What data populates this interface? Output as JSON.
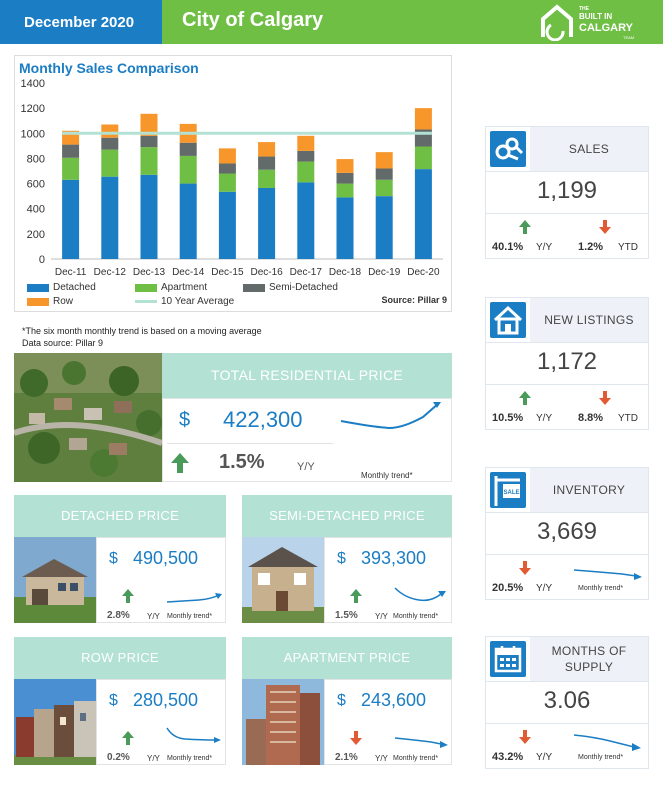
{
  "header": {
    "date": "December 2020",
    "city": "City of Calgary",
    "logo_lines": [
      "THE",
      "BUILT IN",
      "CALGARY",
      "TEAM"
    ]
  },
  "colors": {
    "blue": "#1b7dc4",
    "green": "#6fbf44",
    "mint": "#b3e2d5",
    "arrow_up": "#4a9a5a",
    "arrow_down": "#e25a33"
  },
  "chart_data": {
    "type": "bar",
    "title": "Monthly Sales Comparison",
    "categories": [
      "Dec-11",
      "Dec-12",
      "Dec-13",
      "Dec-14",
      "Dec-15",
      "Dec-16",
      "Dec-17",
      "Dec-18",
      "Dec-19",
      "Dec-20"
    ],
    "series": [
      {
        "name": "Detached",
        "color": "#1b7dc4",
        "values": [
          630,
          655,
          670,
          600,
          535,
          565,
          610,
          490,
          500,
          715
        ]
      },
      {
        "name": "Apartment",
        "color": "#6fbf44",
        "values": [
          175,
          215,
          220,
          220,
          145,
          145,
          165,
          110,
          130,
          180
        ]
      },
      {
        "name": "Semi-Detached",
        "color": "#636b6a",
        "values": [
          105,
          95,
          90,
          105,
          80,
          105,
          85,
          85,
          90,
          135
        ]
      },
      {
        "name": "Row",
        "color": "#f7962b",
        "values": [
          110,
          105,
          175,
          150,
          120,
          115,
          120,
          110,
          130,
          170
        ]
      }
    ],
    "line": {
      "name": "10 Year Average",
      "color": "#b3e2d5",
      "value": 1000
    },
    "ylim": [
      0,
      1400
    ],
    "yticks": [
      0,
      200,
      400,
      600,
      800,
      1000,
      1200,
      1400
    ],
    "source": "Source: Pillar 9"
  },
  "notes": {
    "line1": "*The six month monthly trend is based on a moving average",
    "line2": "Data source: Pillar 9"
  },
  "total": {
    "title": "TOTAL RESIDENTIAL PRICE",
    "currency": "$",
    "value": "422,300",
    "pct": "1.5%",
    "lbl": "Y/Y",
    "trend": "Monthly trend*"
  },
  "tiles": [
    {
      "title": "DETACHED PRICE",
      "currency": "$",
      "value": "490,500",
      "pct": "2.8%",
      "lbl": "Y/Y",
      "trend": "Monthly trend*"
    },
    {
      "title": "SEMI-DETACHED PRICE",
      "currency": "$",
      "value": "393,300",
      "pct": "1.5%",
      "lbl": "Y/Y",
      "trend": "Monthly trend*"
    },
    {
      "title": "ROW PRICE",
      "currency": "$",
      "value": "280,500",
      "pct": "0.2%",
      "lbl": "Y/Y",
      "trend": "Monthly trend*"
    },
    {
      "title": "APARTMENT PRICE",
      "currency": "$",
      "value": "243,600",
      "pct": "2.1%",
      "lbl": "Y/Y",
      "trend": "Monthly trend*"
    }
  ],
  "cards": [
    {
      "title": "SALES",
      "value": "1,199",
      "a_pct": "40.1%",
      "a_lbl": "Y/Y",
      "b_pct": "1.2%",
      "b_lbl": "YTD"
    },
    {
      "title": "NEW LISTINGS",
      "value": "1,172",
      "a_pct": "10.5%",
      "a_lbl": "Y/Y",
      "b_pct": "8.8%",
      "b_lbl": "YTD"
    },
    {
      "title": "INVENTORY",
      "value": "3,669",
      "a_pct": "20.5%",
      "a_lbl": "Y/Y",
      "trend": "Monthly trend*"
    },
    {
      "title": "MONTHS OF SUPPLY",
      "value": "3.06",
      "a_pct": "43.2%",
      "a_lbl": "Y/Y",
      "trend": "Monthly trend*"
    }
  ]
}
